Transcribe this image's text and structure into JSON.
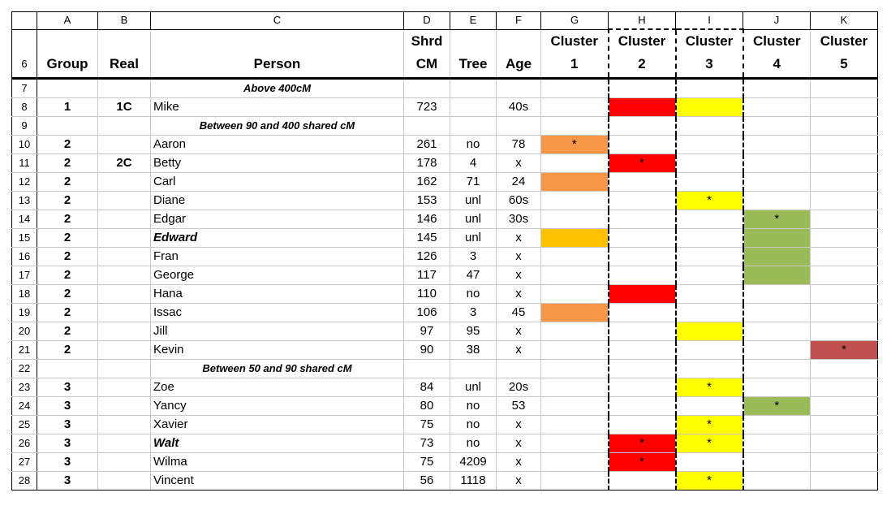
{
  "column_letters": [
    "A",
    "B",
    "C",
    "D",
    "E",
    "F",
    "G",
    "H",
    "I",
    "J",
    "K"
  ],
  "header_row": {
    "row_num": "6",
    "group": "Group",
    "real": "Real",
    "person": "Person",
    "shrd_line1": "Shrd",
    "shrd_line2": "CM",
    "tree": "Tree",
    "age": "Age",
    "clusters": [
      {
        "line1": "Cluster",
        "line2": "1"
      },
      {
        "line1": "Cluster",
        "line2": "2"
      },
      {
        "line1": "Cluster",
        "line2": "3"
      },
      {
        "line1": "Cluster",
        "line2": "4"
      },
      {
        "line1": "Cluster",
        "line2": "5"
      }
    ]
  },
  "colors": {
    "orange": "#F79646",
    "gold": "#FFC000",
    "red": "#FF0000",
    "yellow": "#FFFF00",
    "green": "#9BBB59",
    "darkred": "#C0504D"
  },
  "rows": [
    {
      "num": "7",
      "section": "Above 400cM"
    },
    {
      "num": "8",
      "group": "1",
      "real": "1C",
      "person": "Mike",
      "cm": "723",
      "tree": "",
      "age": "40s",
      "clusters": [
        null,
        {
          "color": "red",
          "mark": ""
        },
        {
          "color": "yellow",
          "mark": ""
        },
        null,
        null
      ]
    },
    {
      "num": "9",
      "section": "Between 90 and 400 shared cM"
    },
    {
      "num": "10",
      "group": "2",
      "real": "",
      "person": "Aaron",
      "cm": "261",
      "tree": "no",
      "age": "78",
      "clusters": [
        {
          "color": "orange",
          "mark": "*"
        },
        null,
        null,
        null,
        null
      ]
    },
    {
      "num": "11",
      "group": "2",
      "real": "2C",
      "person": "Betty",
      "cm": "178",
      "tree": "4",
      "age": "x",
      "clusters": [
        null,
        {
          "color": "red",
          "mark": "*"
        },
        null,
        null,
        null
      ]
    },
    {
      "num": "12",
      "group": "2",
      "real": "",
      "person": "Carl",
      "cm": "162",
      "tree": "71",
      "age": "24",
      "clusters": [
        {
          "color": "orange",
          "mark": ""
        },
        null,
        null,
        null,
        null
      ]
    },
    {
      "num": "13",
      "group": "2",
      "real": "",
      "person": "Diane",
      "cm": "153",
      "tree": "unl",
      "age": "60s",
      "clusters": [
        null,
        null,
        {
          "color": "yellow",
          "mark": "*"
        },
        null,
        null
      ]
    },
    {
      "num": "14",
      "group": "2",
      "real": "",
      "person": "Edgar",
      "cm": "146",
      "tree": "unl",
      "age": "30s",
      "clusters": [
        null,
        null,
        null,
        {
          "color": "green",
          "mark": "*"
        },
        null
      ]
    },
    {
      "num": "15",
      "group": "2",
      "real": "",
      "person": "Edward",
      "bold": true,
      "cm": "145",
      "tree": "unl",
      "age": "x",
      "clusters": [
        {
          "color": "gold",
          "mark": ""
        },
        null,
        null,
        {
          "color": "green",
          "mark": ""
        },
        null
      ]
    },
    {
      "num": "16",
      "group": "2",
      "real": "",
      "person": "Fran",
      "cm": "126",
      "tree": "3",
      "age": "x",
      "clusters": [
        null,
        null,
        null,
        {
          "color": "green",
          "mark": ""
        },
        null
      ]
    },
    {
      "num": "17",
      "group": "2",
      "real": "",
      "person": "George",
      "cm": "117",
      "tree": "47",
      "age": "x",
      "clusters": [
        null,
        null,
        null,
        {
          "color": "green",
          "mark": ""
        },
        null
      ]
    },
    {
      "num": "18",
      "group": "2",
      "real": "",
      "person": "Hana",
      "cm": "110",
      "tree": "no",
      "age": "x",
      "clusters": [
        null,
        {
          "color": "red",
          "mark": ""
        },
        null,
        null,
        null
      ]
    },
    {
      "num": "19",
      "group": "2",
      "real": "",
      "person": "Issac",
      "cm": "106",
      "tree": "3",
      "age": "45",
      "clusters": [
        {
          "color": "orange",
          "mark": ""
        },
        null,
        null,
        null,
        null
      ]
    },
    {
      "num": "20",
      "group": "2",
      "real": "",
      "person": "Jill",
      "cm": "97",
      "tree": "95",
      "age": "x",
      "clusters": [
        null,
        null,
        {
          "color": "yellow",
          "mark": ""
        },
        null,
        null
      ]
    },
    {
      "num": "21",
      "group": "2",
      "real": "",
      "person": "Kevin",
      "cm": "90",
      "tree": "38",
      "age": "x",
      "clusters": [
        null,
        null,
        null,
        null,
        {
          "color": "darkred",
          "mark": "*"
        }
      ]
    },
    {
      "num": "22",
      "section": "Between 50 and 90 shared cM"
    },
    {
      "num": "23",
      "group": "3",
      "real": "",
      "person": "Zoe",
      "cm": "84",
      "tree": "unl",
      "age": "20s",
      "clusters": [
        null,
        null,
        {
          "color": "yellow",
          "mark": "*"
        },
        null,
        null
      ]
    },
    {
      "num": "24",
      "group": "3",
      "real": "",
      "person": "Yancy",
      "cm": "80",
      "tree": "no",
      "age": "53",
      "clusters": [
        null,
        null,
        null,
        {
          "color": "green",
          "mark": "*"
        },
        null
      ]
    },
    {
      "num": "25",
      "group": "3",
      "real": "",
      "person": "Xavier",
      "cm": "75",
      "tree": "no",
      "age": "x",
      "clusters": [
        null,
        null,
        {
          "color": "yellow",
          "mark": "*"
        },
        null,
        null
      ]
    },
    {
      "num": "26",
      "group": "3",
      "real": "",
      "person": "Walt",
      "bold": true,
      "cm": "73",
      "tree": "no",
      "age": "x",
      "clusters": [
        null,
        {
          "color": "red",
          "mark": "*"
        },
        {
          "color": "yellow",
          "mark": "*"
        },
        null,
        null
      ]
    },
    {
      "num": "27",
      "group": "3",
      "real": "",
      "person": "Wilma",
      "cm": "75",
      "tree": "4209",
      "age": "x",
      "clusters": [
        null,
        {
          "color": "red",
          "mark": "*"
        },
        null,
        null,
        null
      ]
    },
    {
      "num": "28",
      "group": "3",
      "real": "",
      "person": "Vincent",
      "cm": "56",
      "tree": "1118",
      "age": "x",
      "clusters": [
        null,
        null,
        {
          "color": "yellow",
          "mark": "*"
        },
        null,
        null
      ]
    }
  ]
}
